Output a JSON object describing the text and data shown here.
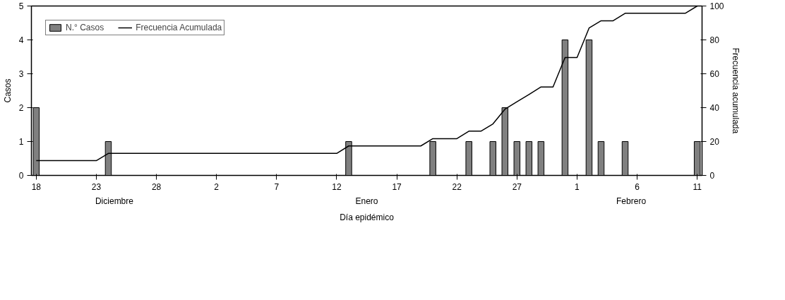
{
  "chart_data": {
    "type": "bar",
    "xlabel": "Día epidémico",
    "ylabel": "Casos",
    "y2label": "Frecuencia acumulada",
    "categories": [
      "18",
      null,
      null,
      null,
      null,
      "23",
      null,
      null,
      null,
      null,
      "28",
      null,
      null,
      null,
      null,
      "2",
      null,
      null,
      null,
      null,
      "7",
      null,
      null,
      null,
      null,
      "12",
      null,
      null,
      null,
      null,
      "17",
      null,
      null,
      null,
      null,
      "22",
      null,
      null,
      null,
      null,
      "27",
      null,
      null,
      null,
      null,
      "1",
      null,
      null,
      null,
      null,
      "6",
      null,
      null,
      null,
      null,
      "11"
    ],
    "ylim": [
      0,
      5
    ],
    "yticks": [
      0,
      1,
      2,
      3,
      4,
      5
    ],
    "y2lim": [
      0,
      100
    ],
    "y2ticks": [
      0,
      20,
      40,
      60,
      80,
      100
    ],
    "legend": "top left",
    "annotations": [
      "Diciembre",
      "Enero",
      "Febrero"
    ],
    "series": [
      {
        "name": "N.° Casos",
        "color": "#808080",
        "values": [
          2,
          null,
          null,
          null,
          null,
          null,
          1,
          null,
          null,
          null,
          null,
          null,
          null,
          null,
          null,
          null,
          null,
          null,
          null,
          null,
          null,
          null,
          null,
          null,
          null,
          null,
          1,
          null,
          null,
          null,
          null,
          null,
          null,
          1,
          null,
          null,
          1,
          null,
          1,
          2,
          1,
          1,
          1,
          null,
          4,
          null,
          4,
          1,
          null,
          1,
          null,
          null,
          null,
          null,
          null,
          1
        ]
      },
      {
        "name": "Frecuencia Acumulada",
        "type": "line",
        "axis": "y2",
        "color": "#000000",
        "values": [
          8.7,
          8.7,
          8.7,
          8.7,
          8.7,
          8.7,
          13,
          13,
          13,
          13,
          13,
          13,
          13,
          13,
          13,
          13,
          13,
          13,
          13,
          13,
          13,
          13,
          13,
          13,
          13,
          13,
          17.4,
          17.4,
          17.4,
          17.4,
          17.4,
          17.4,
          17.4,
          21.7,
          21.7,
          21.7,
          26.1,
          26.1,
          30.4,
          39.1,
          43.5,
          47.8,
          52.2,
          52.2,
          69.6,
          69.6,
          87,
          91.3,
          91.3,
          95.7,
          95.7,
          95.7,
          95.7,
          95.7,
          95.7,
          100
        ]
      }
    ]
  }
}
